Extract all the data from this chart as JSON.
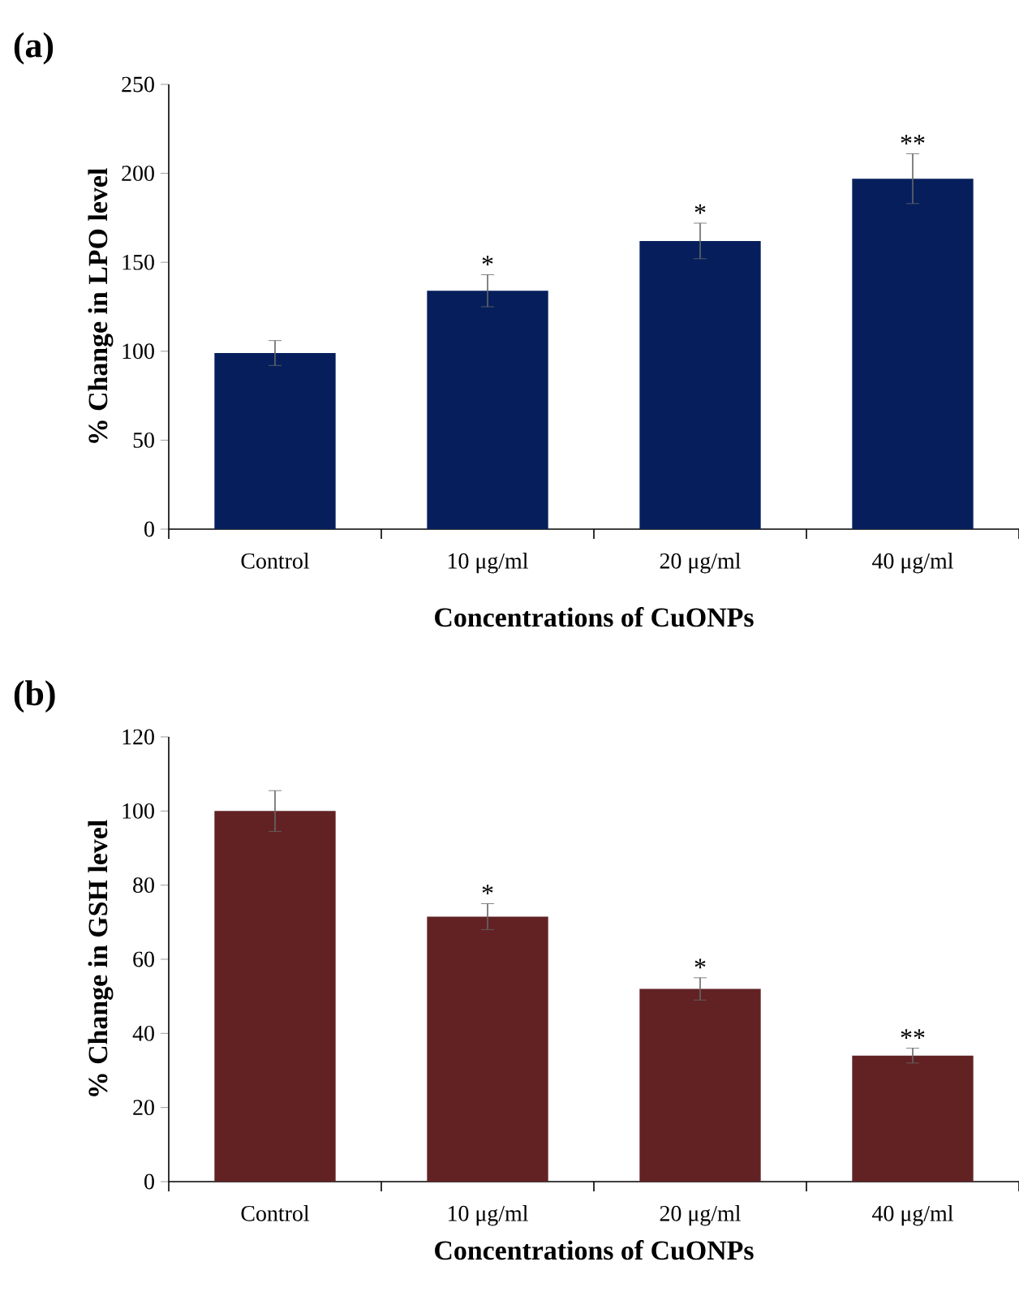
{
  "chart_data": [
    {
      "type": "bar",
      "title": "(a)",
      "xlabel": "Concentrations of CuONPs",
      "ylabel": "% Change in LPO level",
      "categories": [
        "Control",
        "10 μg/ml",
        "20 μg/ml",
        "40 μg/ml"
      ],
      "values": [
        99,
        134,
        162,
        197
      ],
      "errors": [
        7,
        9,
        10,
        14
      ],
      "color": "#061f5c",
      "ylim": [
        0,
        250
      ],
      "yticks": [
        0,
        50,
        100,
        150,
        200,
        250
      ],
      "grid": false,
      "annotations": [
        {
          "text": "*",
          "x": "10 μg/ml",
          "y": 143
        },
        {
          "text": "*",
          "x": "20 μg/ml",
          "y": 172
        },
        {
          "text": "**",
          "x": "40 μg/ml",
          "y": 211
        }
      ]
    },
    {
      "type": "bar",
      "title": "(b)",
      "xlabel": "Concentrations of CuONPs",
      "ylabel": "% Change in GSH level",
      "categories": [
        "Control",
        "10 μg/ml",
        "20 μg/ml",
        "40 μg/ml"
      ],
      "values": [
        100,
        71.5,
        52,
        34
      ],
      "errors": [
        5.5,
        3.5,
        3,
        2
      ],
      "color": "#622224",
      "ylim": [
        0,
        120
      ],
      "yticks": [
        0,
        20,
        40,
        60,
        80,
        100,
        120
      ],
      "grid": false,
      "annotations": [
        {
          "text": "*",
          "x": "10 μg/ml",
          "y": 75
        },
        {
          "text": "*",
          "x": "20 μg/ml",
          "y": 55
        },
        {
          "text": "**",
          "x": "40 μg/ml",
          "y": 36
        }
      ]
    }
  ]
}
